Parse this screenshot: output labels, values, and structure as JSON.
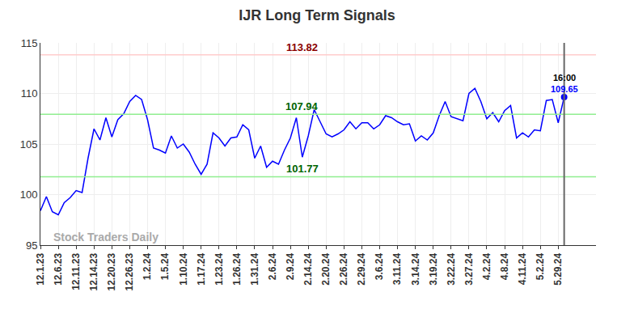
{
  "chart_data": {
    "type": "line",
    "title": "IJR Long Term Signals",
    "categories": [
      "12.1.23",
      null,
      null,
      "12.6.23",
      null,
      null,
      "12.11.23",
      null,
      null,
      "12.14.23",
      null,
      null,
      "12.20.23",
      null,
      null,
      "12.26.23",
      null,
      null,
      "1.2.24",
      null,
      null,
      "1.5.24",
      null,
      null,
      "1.10.24",
      null,
      null,
      "1.17.24",
      null,
      null,
      "1.23.24",
      null,
      null,
      "1.26.24",
      null,
      null,
      "1.31.24",
      null,
      null,
      "2.6.24",
      null,
      null,
      "2.9.24",
      null,
      null,
      "2.14.24",
      null,
      null,
      "2.20.24",
      null,
      null,
      "2.26.24",
      null,
      null,
      "2.29.24",
      null,
      null,
      "3.6.24",
      null,
      null,
      "3.11.24",
      null,
      null,
      "3.14.24",
      null,
      null,
      "3.19.24",
      null,
      null,
      "3.22.24",
      null,
      null,
      "3.27.24",
      null,
      null,
      "4.2.24",
      null,
      null,
      "4.8.24",
      null,
      null,
      "4.11.24",
      null,
      null,
      "5.2.24",
      null,
      null,
      "5.29.24",
      null
    ],
    "values": [
      98.4,
      99.8,
      98.3,
      98.0,
      99.2,
      99.7,
      100.4,
      100.2,
      103.6,
      106.5,
      105.4,
      107.6,
      105.7,
      107.4,
      108.0,
      109.2,
      109.8,
      109.4,
      107.4,
      104.6,
      104.4,
      104.1,
      105.8,
      104.6,
      105.0,
      104.2,
      103.0,
      102.0,
      103.0,
      106.1,
      105.6,
      104.8,
      105.6,
      105.7,
      106.9,
      106.4,
      103.6,
      104.8,
      102.7,
      103.3,
      103.0,
      104.4,
      105.6,
      107.6,
      103.7,
      105.8,
      108.4,
      107.2,
      106.0,
      105.7,
      106.0,
      106.4,
      107.2,
      106.5,
      107.1,
      107.1,
      106.5,
      106.9,
      107.8,
      107.6,
      107.2,
      106.9,
      107.0,
      105.3,
      105.8,
      105.4,
      106.1,
      107.8,
      109.2,
      107.7,
      107.5,
      107.3,
      110.0,
      110.5,
      109.2,
      107.5,
      108.1,
      107.2,
      108.3,
      108.8,
      105.6,
      106.1,
      105.7,
      106.4,
      106.3,
      109.3,
      109.4,
      107.1,
      109.65
    ],
    "color": "#0000ff",
    "levels": [
      {
        "value": 113.82,
        "color": "#ffcccc",
        "label_color": "#8b0000"
      },
      {
        "value": 107.94,
        "color": "#90ee90",
        "label_color": "#006400"
      },
      {
        "value": 101.77,
        "color": "#90ee90",
        "label_color": "#006400"
      }
    ],
    "last_point_time": "16:00",
    "watermark": "Stock Traders Daily",
    "ylim": [
      95,
      115
    ],
    "yticks": [
      95,
      100,
      105,
      110,
      115
    ],
    "grid": true
  }
}
